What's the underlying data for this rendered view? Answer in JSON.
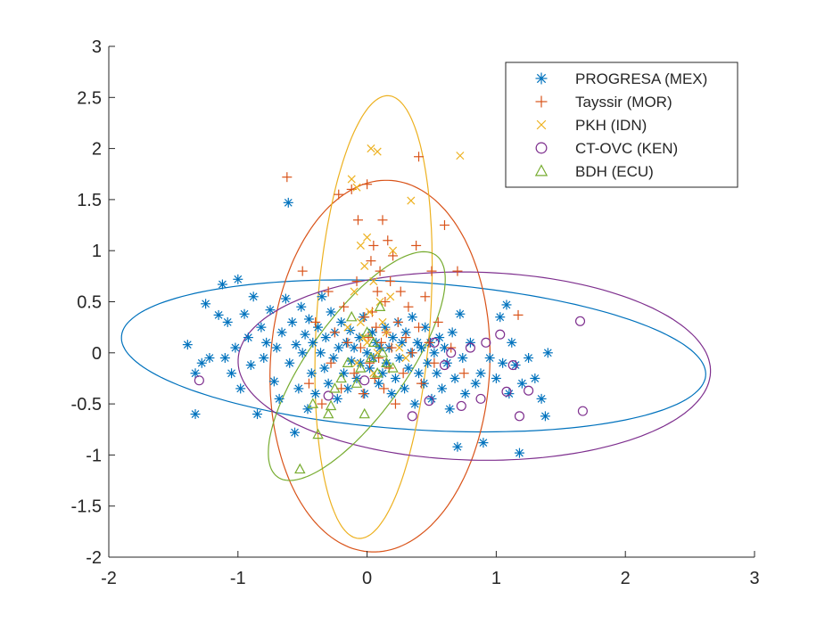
{
  "chart_data": {
    "type": "scatter",
    "title": "",
    "xlabel": "",
    "ylabel": "",
    "xlim": [
      -2,
      3
    ],
    "ylim": [
      -2,
      3
    ],
    "x_ticks": [
      -2,
      -1,
      0,
      1,
      2,
      3
    ],
    "y_ticks": [
      -2,
      -1.5,
      -1,
      -0.5,
      0,
      0.5,
      1,
      1.5,
      2,
      2.5,
      3
    ],
    "x_tick_labels": [
      "-2",
      "-1",
      "0",
      "1",
      "2",
      "3"
    ],
    "y_tick_labels": [
      "-2",
      "-1.5",
      "-1",
      "-0.5",
      "0",
      "0.5",
      "1",
      "1.5",
      "2",
      "2.5",
      "3"
    ],
    "grid": false,
    "legend_position": "top-right",
    "series": [
      {
        "name": "PROGRESA (MEX)",
        "marker": "asterisk",
        "color": "#0072BD",
        "ellipse": {
          "cx": 0.36,
          "cy": -0.03,
          "rx": 2.27,
          "ry": 0.72,
          "angle_deg": -5
        },
        "points": [
          [
            -1.39,
            0.08
          ],
          [
            -1.33,
            -0.2
          ],
          [
            -1.33,
            -0.6
          ],
          [
            -1.28,
            -0.1
          ],
          [
            -1.25,
            0.48
          ],
          [
            -1.22,
            -0.05
          ],
          [
            -1.15,
            0.37
          ],
          [
            -1.12,
            0.67
          ],
          [
            -1.1,
            -0.05
          ],
          [
            -1.08,
            0.3
          ],
          [
            -1.05,
            -0.2
          ],
          [
            -1.02,
            0.05
          ],
          [
            -1.0,
            0.72
          ],
          [
            -0.98,
            -0.35
          ],
          [
            -0.95,
            0.38
          ],
          [
            -0.92,
            0.15
          ],
          [
            -0.9,
            -0.12
          ],
          [
            -0.88,
            0.55
          ],
          [
            -0.85,
            -0.6
          ],
          [
            -0.82,
            0.25
          ],
          [
            -0.8,
            -0.05
          ],
          [
            -0.78,
            0.1
          ],
          [
            -0.75,
            0.42
          ],
          [
            -0.72,
            -0.28
          ],
          [
            -0.7,
            0.05
          ],
          [
            -0.68,
            -0.45
          ],
          [
            -0.66,
            0.2
          ],
          [
            -0.63,
            0.53
          ],
          [
            -0.61,
            1.47
          ],
          [
            -0.6,
            -0.1
          ],
          [
            -0.58,
            0.3
          ],
          [
            -0.56,
            -0.78
          ],
          [
            -0.55,
            0.08
          ],
          [
            -0.53,
            -0.35
          ],
          [
            -0.51,
            0.45
          ],
          [
            -0.5,
            0.0
          ],
          [
            -0.48,
            0.18
          ],
          [
            -0.46,
            -0.55
          ],
          [
            -0.45,
            0.33
          ],
          [
            -0.43,
            -0.2
          ],
          [
            -0.42,
            0.1
          ],
          [
            -0.4,
            -0.4
          ],
          [
            -0.38,
            0.25
          ],
          [
            -0.36,
            0.0
          ],
          [
            -0.35,
            0.55
          ],
          [
            -0.33,
            -0.15
          ],
          [
            -0.32,
            0.15
          ],
          [
            -0.3,
            -0.3
          ],
          [
            -0.28,
            0.4
          ],
          [
            -0.26,
            -0.05
          ],
          [
            -0.25,
            0.2
          ],
          [
            -0.23,
            -0.45
          ],
          [
            -0.22,
            0.05
          ],
          [
            -0.2,
            0.3
          ],
          [
            -0.18,
            -0.2
          ],
          [
            -0.16,
            0.1
          ],
          [
            -0.15,
            -0.35
          ],
          [
            -0.13,
            0.22
          ],
          [
            -0.12,
            -0.08
          ],
          [
            -0.1,
            0.05
          ],
          [
            -0.08,
            -0.25
          ],
          [
            -0.06,
            0.15
          ],
          [
            -0.05,
            -0.1
          ],
          [
            -0.03,
            0.35
          ],
          [
            -0.02,
            -0.4
          ],
          [
            0.0,
            0.0
          ],
          [
            0.02,
            -0.15
          ],
          [
            0.04,
            0.2
          ],
          [
            0.05,
            -0.05
          ],
          [
            0.07,
            0.1
          ],
          [
            0.09,
            -0.3
          ],
          [
            0.1,
            0.05
          ],
          [
            0.12,
            -0.2
          ],
          [
            0.14,
            0.25
          ],
          [
            0.15,
            -0.1
          ],
          [
            0.17,
            0.05
          ],
          [
            0.19,
            -0.4
          ],
          [
            0.2,
            0.15
          ],
          [
            0.22,
            -0.25
          ],
          [
            0.24,
            0.3
          ],
          [
            0.25,
            -0.05
          ],
          [
            0.27,
            0.1
          ],
          [
            0.29,
            -0.35
          ],
          [
            0.3,
            0.2
          ],
          [
            0.32,
            -0.15
          ],
          [
            0.34,
            0.0
          ],
          [
            0.35,
            0.35
          ],
          [
            0.37,
            -0.5
          ],
          [
            0.39,
            0.1
          ],
          [
            0.4,
            -0.2
          ],
          [
            0.42,
            0.05
          ],
          [
            0.44,
            -0.3
          ],
          [
            0.45,
            0.25
          ],
          [
            0.47,
            -0.1
          ],
          [
            0.49,
            0.1
          ],
          [
            0.5,
            -0.45
          ],
          [
            0.52,
            0.0
          ],
          [
            0.54,
            -0.2
          ],
          [
            0.56,
            0.15
          ],
          [
            0.58,
            -0.35
          ],
          [
            0.6,
            0.05
          ],
          [
            0.62,
            -0.1
          ],
          [
            0.64,
            -0.55
          ],
          [
            0.66,
            0.2
          ],
          [
            0.68,
            -0.25
          ],
          [
            0.7,
            -0.92
          ],
          [
            0.72,
            0.38
          ],
          [
            0.74,
            -0.05
          ],
          [
            0.76,
            -0.4
          ],
          [
            0.8,
            0.1
          ],
          [
            0.84,
            -0.3
          ],
          [
            0.88,
            -0.2
          ],
          [
            0.9,
            -0.88
          ],
          [
            0.95,
            -0.05
          ],
          [
            1.0,
            -0.25
          ],
          [
            1.03,
            0.35
          ],
          [
            1.05,
            -0.1
          ],
          [
            1.08,
            0.47
          ],
          [
            1.1,
            -0.4
          ],
          [
            1.12,
            0.1
          ],
          [
            1.15,
            -0.12
          ],
          [
            1.18,
            -0.98
          ],
          [
            1.2,
            -0.3
          ],
          [
            1.25,
            -0.05
          ],
          [
            1.3,
            -0.25
          ],
          [
            1.35,
            -0.45
          ],
          [
            1.4,
            0.0
          ],
          [
            1.38,
            -0.62
          ]
        ]
      },
      {
        "name": "Tayssir (MOR)",
        "marker": "plus",
        "color": "#D95319",
        "ellipse": {
          "cx": 0.1,
          "cy": -0.13,
          "rx": 1.82,
          "ry": 0.85,
          "angle_deg": 88
        },
        "points": [
          [
            -0.62,
            1.72
          ],
          [
            -0.5,
            0.8
          ],
          [
            -0.45,
            -0.3
          ],
          [
            -0.4,
            0.3
          ],
          [
            -0.35,
            -0.5
          ],
          [
            -0.3,
            0.6
          ],
          [
            -0.28,
            -0.1
          ],
          [
            -0.25,
            0.2
          ],
          [
            -0.22,
            1.55
          ],
          [
            -0.2,
            -0.35
          ],
          [
            -0.18,
            0.45
          ],
          [
            -0.15,
            0.1
          ],
          [
            -0.12,
            1.6
          ],
          [
            -0.1,
            -0.2
          ],
          [
            -0.08,
            0.7
          ],
          [
            -0.07,
            1.3
          ],
          [
            -0.05,
            0.05
          ],
          [
            -0.03,
            -0.4
          ],
          [
            -0.02,
            0.35
          ],
          [
            0.0,
            1.65
          ],
          [
            0.01,
            0.15
          ],
          [
            0.02,
            -0.1
          ],
          [
            0.03,
            0.9
          ],
          [
            0.04,
            0.4
          ],
          [
            0.05,
            1.05
          ],
          [
            0.06,
            -0.25
          ],
          [
            0.07,
            0.25
          ],
          [
            0.08,
            0.6
          ],
          [
            0.09,
            -0.05
          ],
          [
            0.1,
            0.8
          ],
          [
            0.11,
            0.1
          ],
          [
            0.12,
            1.3
          ],
          [
            0.13,
            -0.35
          ],
          [
            0.14,
            0.5
          ],
          [
            0.15,
            0.2
          ],
          [
            0.16,
            1.1
          ],
          [
            0.17,
            -0.15
          ],
          [
            0.18,
            0.7
          ],
          [
            0.19,
            0.05
          ],
          [
            0.2,
            0.95
          ],
          [
            0.22,
            -0.5
          ],
          [
            0.24,
            0.3
          ],
          [
            0.26,
            0.6
          ],
          [
            0.28,
            -0.2
          ],
          [
            0.3,
            0.15
          ],
          [
            0.32,
            0.45
          ],
          [
            0.35,
            0.0
          ],
          [
            0.38,
            1.05
          ],
          [
            0.4,
            0.25
          ],
          [
            0.42,
            -0.3
          ],
          [
            0.45,
            0.55
          ],
          [
            0.48,
            0.1
          ],
          [
            0.5,
            0.8
          ],
          [
            0.52,
            -0.1
          ],
          [
            0.55,
            0.3
          ],
          [
            0.6,
            1.25
          ],
          [
            0.65,
            0.05
          ],
          [
            0.7,
            0.8
          ],
          [
            0.75,
            -0.2
          ],
          [
            0.4,
            1.92
          ],
          [
            1.17,
            0.37
          ]
        ]
      },
      {
        "name": "PKH (IDN)",
        "marker": "x",
        "color": "#EDB120",
        "ellipse": {
          "cx": 0.05,
          "cy": 0.35,
          "rx": 2.17,
          "ry": 0.44,
          "angle_deg": 87
        },
        "points": [
          [
            0.03,
            2.0
          ],
          [
            0.08,
            1.97
          ],
          [
            0.72,
            1.93
          ],
          [
            -0.12,
            1.7
          ],
          [
            -0.08,
            1.62
          ],
          [
            0.34,
            1.49
          ],
          [
            0.0,
            1.13
          ],
          [
            -0.05,
            1.05
          ],
          [
            0.2,
            1.0
          ],
          [
            -0.02,
            0.85
          ],
          [
            0.05,
            0.7
          ],
          [
            -0.1,
            0.6
          ],
          [
            0.1,
            0.5
          ],
          [
            0.02,
            0.4
          ],
          [
            -0.05,
            0.3
          ],
          [
            0.15,
            0.2
          ],
          [
            0.0,
            0.1
          ],
          [
            0.08,
            0.0
          ],
          [
            -0.08,
            -0.1
          ],
          [
            0.05,
            -0.2
          ],
          [
            0.12,
            0.3
          ],
          [
            -0.03,
            0.15
          ],
          [
            0.18,
            0.55
          ],
          [
            0.25,
            0.05
          ],
          [
            -0.15,
            0.25
          ],
          [
            0.3,
            -0.05
          ]
        ]
      },
      {
        "name": "CT-OVC (KEN)",
        "marker": "circle",
        "color": "#7E2F8E",
        "ellipse": {
          "cx": 0.83,
          "cy": -0.13,
          "rx": 1.83,
          "ry": 0.92,
          "angle_deg": -2
        },
        "points": [
          [
            -1.3,
            -0.27
          ],
          [
            -0.3,
            -0.42
          ],
          [
            -0.02,
            -0.27
          ],
          [
            0.35,
            -0.62
          ],
          [
            0.48,
            -0.47
          ],
          [
            0.52,
            0.1
          ],
          [
            0.6,
            -0.12
          ],
          [
            0.65,
            0.0
          ],
          [
            0.73,
            -0.52
          ],
          [
            0.8,
            0.05
          ],
          [
            0.88,
            -0.45
          ],
          [
            0.92,
            0.1
          ],
          [
            1.03,
            0.18
          ],
          [
            1.08,
            -0.38
          ],
          [
            1.13,
            -0.12
          ],
          [
            1.18,
            -0.62
          ],
          [
            1.25,
            -0.37
          ],
          [
            1.65,
            0.31
          ],
          [
            1.67,
            -0.57
          ]
        ]
      },
      {
        "name": "BDH (ECU)",
        "marker": "triangle",
        "color": "#77AC30",
        "ellipse": {
          "cx": -0.08,
          "cy": -0.13,
          "rx": 1.25,
          "ry": 0.4,
          "angle_deg": 62
        },
        "points": [
          [
            -0.52,
            -1.14
          ],
          [
            -0.42,
            -0.5
          ],
          [
            -0.38,
            -0.8
          ],
          [
            -0.3,
            -0.6
          ],
          [
            -0.28,
            -0.52
          ],
          [
            -0.25,
            -0.35
          ],
          [
            -0.2,
            -0.25
          ],
          [
            -0.15,
            -0.1
          ],
          [
            -0.12,
            0.35
          ],
          [
            -0.08,
            -0.3
          ],
          [
            -0.05,
            -0.15
          ],
          [
            -0.02,
            -0.6
          ],
          [
            0.0,
            0.2
          ],
          [
            0.03,
            -0.05
          ],
          [
            0.05,
            0.1
          ],
          [
            0.08,
            -0.2
          ],
          [
            0.1,
            0.45
          ],
          [
            0.12,
            0.0
          ],
          [
            0.15,
            -0.1
          ],
          [
            0.2,
            -0.15
          ]
        ]
      }
    ]
  }
}
